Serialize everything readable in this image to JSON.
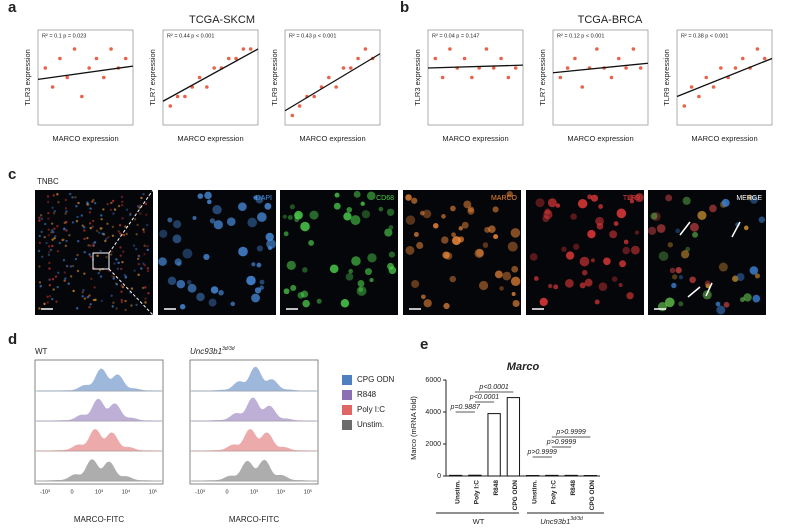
{
  "panels": {
    "a": "a",
    "b": "b",
    "c": "c",
    "d": "d",
    "e": "e"
  },
  "group_titles": [
    "TCGA-SKCM",
    "TCGA-BRCA"
  ],
  "chart_data": [
    {
      "type": "scatter",
      "annotation": "R² = 0.1   p = 0.023",
      "x_label": "MARCO expression",
      "y_label": "TLR3 expression",
      "color": "#e8634a",
      "x": [
        1,
        2,
        3,
        4,
        5,
        6,
        7,
        8,
        9,
        10,
        11,
        12
      ],
      "values": [
        6,
        4,
        7,
        5,
        8,
        3,
        6,
        7,
        5,
        8,
        6,
        7
      ],
      "fit": {
        "x": [
          0,
          13
        ],
        "y": [
          4.8,
          6.2
        ]
      },
      "xlim": [
        0,
        13
      ],
      "ylim": [
        0,
        10
      ]
    },
    {
      "type": "scatter",
      "annotation": "R² = 0.44   p < 0.001",
      "x_label": "MARCO expression",
      "y_label": "TLR7 expression",
      "color": "#e8634a",
      "x": [
        1,
        2,
        3,
        4,
        5,
        6,
        7,
        8,
        9,
        10,
        11,
        12
      ],
      "values": [
        2,
        3,
        3,
        4,
        5,
        4,
        6,
        6,
        7,
        7,
        8,
        8
      ],
      "fit": {
        "x": [
          0,
          13
        ],
        "y": [
          2.5,
          8
        ]
      },
      "xlim": [
        0,
        13
      ],
      "ylim": [
        0,
        10
      ]
    },
    {
      "type": "scatter",
      "annotation": "R² = 0.43   p < 0.001",
      "x_label": "MARCO expression",
      "y_label": "TLR9 expression",
      "color": "#e8634a",
      "x": [
        1,
        2,
        3,
        4,
        5,
        6,
        7,
        8,
        9,
        10,
        11,
        12
      ],
      "values": [
        1,
        2,
        3,
        3,
        4,
        5,
        4,
        6,
        6,
        7,
        8,
        7
      ],
      "fit": {
        "x": [
          0,
          13
        ],
        "y": [
          1.5,
          7.5
        ]
      },
      "xlim": [
        0,
        13
      ],
      "ylim": [
        0,
        10
      ]
    },
    {
      "type": "scatter",
      "annotation": "R² = 0.04   p = 0.147",
      "x_label": "MARCO expression",
      "y_label": "TLR3 expression",
      "color": "#e8634a",
      "x": [
        1,
        2,
        3,
        4,
        5,
        6,
        7,
        8,
        9,
        10,
        11,
        12
      ],
      "values": [
        7,
        5,
        8,
        6,
        7,
        5,
        6,
        8,
        6,
        7,
        5,
        6
      ],
      "fit": {
        "x": [
          0,
          13
        ],
        "y": [
          6,
          6.3
        ]
      },
      "xlim": [
        0,
        13
      ],
      "ylim": [
        0,
        10
      ]
    },
    {
      "type": "scatter",
      "annotation": "R² = 0.12   p < 0.001",
      "x_label": "MARCO expression",
      "y_label": "TLR7 expression",
      "color": "#e8634a",
      "x": [
        1,
        2,
        3,
        4,
        5,
        6,
        7,
        8,
        9,
        10,
        11,
        12
      ],
      "values": [
        5,
        6,
        7,
        4,
        6,
        8,
        6,
        5,
        7,
        6,
        8,
        6
      ],
      "fit": {
        "x": [
          0,
          13
        ],
        "y": [
          5.5,
          6.5
        ]
      },
      "xlim": [
        0,
        13
      ],
      "ylim": [
        0,
        10
      ]
    },
    {
      "type": "scatter",
      "annotation": "R² = 0.38   p < 0.001",
      "x_label": "MARCO expression",
      "y_label": "TLR9 expression",
      "color": "#e8634a",
      "x": [
        1,
        2,
        3,
        4,
        5,
        6,
        7,
        8,
        9,
        10,
        11,
        12
      ],
      "values": [
        2,
        4,
        3,
        5,
        4,
        6,
        5,
        6,
        7,
        6,
        8,
        7
      ],
      "fit": {
        "x": [
          0,
          13
        ],
        "y": [
          3,
          7
        ]
      },
      "xlim": [
        0,
        13
      ],
      "ylim": [
        0,
        10
      ]
    },
    {
      "type": "bar",
      "title": "Marco",
      "y_label": "Marco (mRNA fold)",
      "color": "#ffffff",
      "categories": [
        "Unstim.",
        "Poly I:C",
        "R848",
        "CPG ODN",
        "Unstim.",
        "Poly I:C",
        "R848",
        "CPG ODN"
      ],
      "values": [
        40,
        50,
        3900,
        4900,
        30,
        40,
        40,
        30
      ],
      "ylim": [
        0,
        6000
      ],
      "yticks": [
        0,
        2000,
        4000,
        6000
      ],
      "groups": [
        "WT",
        "Unc93b1",
        "3d/3d"
      ],
      "annotations": [
        "p<0.0001",
        "p<0.0001",
        "p=0.9887",
        "p>0.9999",
        "p>0.9999",
        "p>0.9999"
      ]
    }
  ],
  "microscopy": {
    "label": "TNBC",
    "channels": [
      "DAPI",
      "CD68",
      "MARCO",
      "TLR9",
      "MERGE"
    ],
    "channel_colors": [
      "#4a90e2",
      "#4cd04c",
      "#f08a3a",
      "#e83a3a",
      "#ffffff"
    ]
  },
  "flow": {
    "groups": [
      "WT",
      "Unc93b1",
      "3d/3d"
    ],
    "x_label": "MARCO-FITC",
    "xticks": [
      "-10³",
      "0",
      "10³",
      "10⁴",
      "10⁵"
    ],
    "legend": [
      {
        "name": "CPG ODN",
        "color": "#4f7fbf"
      },
      {
        "name": "R848",
        "color": "#8a6fb5"
      },
      {
        "name": "Poly I:C",
        "color": "#e06666"
      },
      {
        "name": "Unstim.",
        "color": "#6b6b6b"
      }
    ]
  }
}
